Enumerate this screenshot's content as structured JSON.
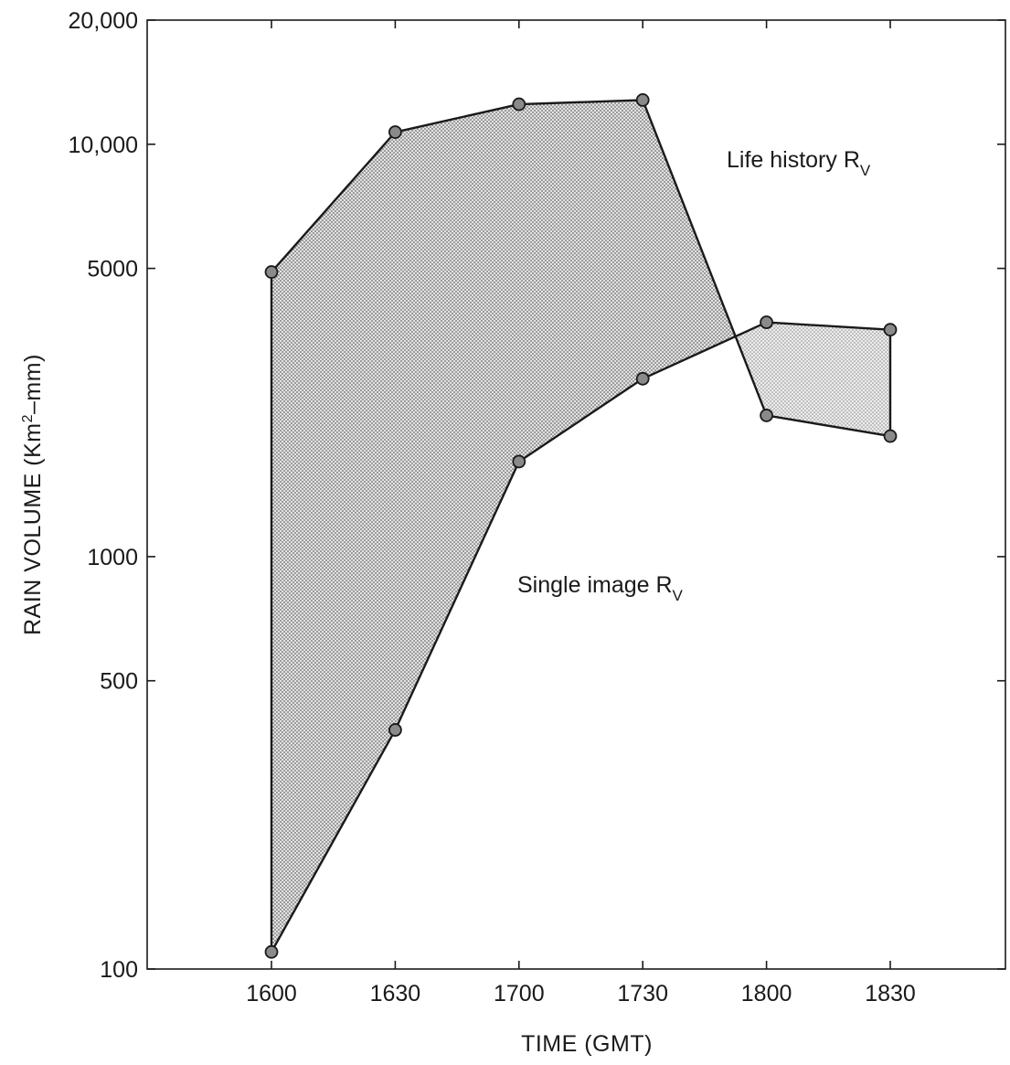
{
  "chart_data": {
    "type": "area",
    "title": "",
    "xlabel": "TIME (GMT)",
    "ylabel": "RAIN VOLUME (Km",
    "ylabel_sup": "2",
    "ylabel_rest": "–mm)",
    "y_scale": "log",
    "ylim": [
      100,
      20000
    ],
    "categories": [
      "1600",
      "1630",
      "1700",
      "1730",
      "1800",
      "1830"
    ],
    "y_ticks": [
      {
        "value": 100,
        "label": "100"
      },
      {
        "value": 500,
        "label": "500"
      },
      {
        "value": 1000,
        "label": "1000"
      },
      {
        "value": 5000,
        "label": "5000"
      },
      {
        "value": 10000,
        "label": "10,000"
      },
      {
        "value": 20000,
        "label": "20,000"
      }
    ],
    "series": [
      {
        "key": "life_history",
        "values": [
          4900,
          10700,
          12500,
          12800,
          2200,
          1960
        ]
      },
      {
        "key": "single_image",
        "values": [
          110,
          380,
          1700,
          2700,
          3700,
          3550
        ]
      }
    ],
    "shading_colors": {
      "region": "#b4b4b4",
      "region_right": "#c4c4c4"
    },
    "annotations": {
      "life_history": {
        "text": "Life history R",
        "sub": "V"
      },
      "single_image": {
        "text": "Single image R",
        "sub": "V"
      }
    },
    "grid": false
  }
}
